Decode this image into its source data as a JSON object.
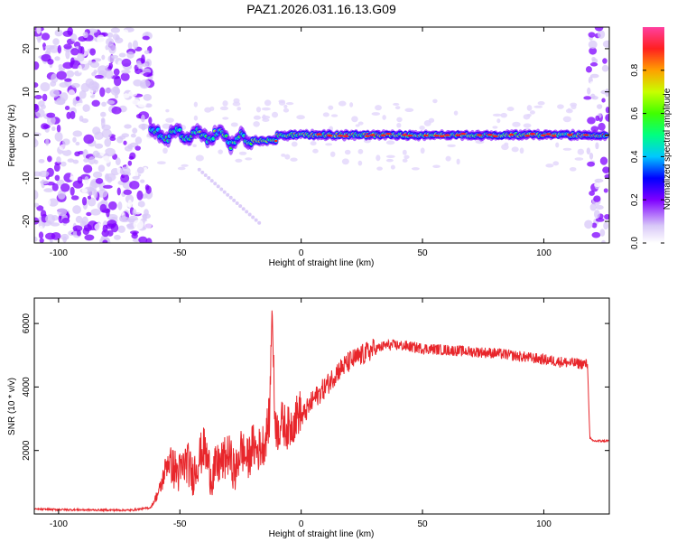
{
  "figure_title": "PAZ1.2026.031.16.13.G09",
  "chart_data": [
    {
      "type": "heatmap",
      "title": "PAZ1.2026.031.16.13.G09",
      "xlabel": "Height of straight line (km)",
      "ylabel": "Frequency (Hz)",
      "xlim": [
        -110,
        127
      ],
      "ylim": [
        -25,
        25
      ],
      "xticks": [
        -100,
        -50,
        0,
        50,
        100
      ],
      "yticks": [
        -20,
        -10,
        0,
        10,
        20
      ],
      "description_points": [
        {
          "x": -110,
          "y_center": 0,
          "amplitude": 0.2
        },
        {
          "x": -60,
          "y_center": 0,
          "amplitude": 0.6
        },
        {
          "x": -40,
          "y_center": 0,
          "amplitude": 0.65
        },
        {
          "x": -20,
          "y_center": 0,
          "amplitude": 0.7
        },
        {
          "x": 0,
          "y_center": 0,
          "amplitude": 0.9
        },
        {
          "x": 50,
          "y_center": 0,
          "amplitude": 0.9
        },
        {
          "x": 100,
          "y_center": 0,
          "amplitude": 0.9
        },
        {
          "x": 118,
          "y_center": 0,
          "amplitude": 0.6
        },
        {
          "x": 127,
          "y_center": 0,
          "amplitude": 0.3
        }
      ]
    },
    {
      "type": "colorbar",
      "label": "Normalized spectral amplitude",
      "range": [
        0,
        1
      ],
      "ticks": [
        "0.0",
        "0.2",
        "0.4",
        "0.6",
        "0.8"
      ],
      "tick_values": [
        0.0,
        0.2,
        0.4,
        0.6,
        0.8
      ]
    },
    {
      "type": "line",
      "xlabel": "Height of straight line (km)",
      "ylabel": "SNR (10 * v/v)",
      "xlim": [
        -110,
        127
      ],
      "ylim": [
        0,
        6800
      ],
      "xticks": [
        -100,
        -50,
        0,
        50,
        100
      ],
      "yticks": [
        2000,
        4000,
        6000
      ],
      "series": [
        {
          "name": "SNR",
          "color": "#e8262b",
          "x": [
            -110,
            -90,
            -70,
            -62,
            -58,
            -55,
            -52,
            -50,
            -47,
            -45,
            -42,
            -40,
            -37,
            -35,
            -32,
            -30,
            -27,
            -25,
            -22,
            -20,
            -18,
            -15,
            -13,
            -12,
            -11,
            -10,
            -8,
            -5,
            -2,
            0,
            5,
            10,
            15,
            20,
            25,
            30,
            35,
            40,
            50,
            60,
            70,
            80,
            90,
            100,
            110,
            118,
            119,
            120,
            127
          ],
          "values": [
            150,
            130,
            120,
            200,
            700,
            1500,
            1100,
            1000,
            1400,
            900,
            1500,
            1800,
            900,
            1200,
            1400,
            1600,
            1000,
            1800,
            1400,
            1900,
            1700,
            2000,
            2800,
            6600,
            3000,
            2300,
            2600,
            2400,
            2800,
            3000,
            3600,
            4000,
            4500,
            4800,
            5000,
            5200,
            5350,
            5350,
            5250,
            5200,
            5150,
            5100,
            5000,
            4900,
            4800,
            4750,
            2400,
            2300,
            2300
          ]
        }
      ]
    }
  ]
}
